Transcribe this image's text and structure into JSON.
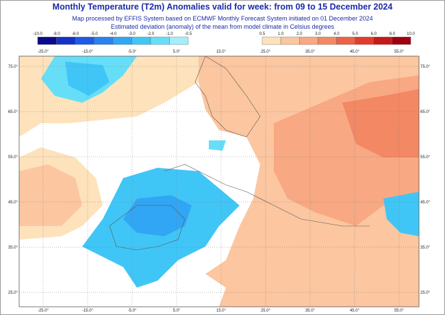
{
  "header": {
    "title": "Monthly Temperature (T2m) Anomalies valid for week: from 09 to 15 December 2024",
    "subtitle_1": "Map processed by EFFIS System based on ECMWF Monthly Forecast System initiated on 01 December 2024",
    "subtitle_2": "Estimated deviation (anomaly) of the mean from model climate in Celsius degrees"
  },
  "legend": {
    "cold": {
      "labels": [
        "-10.0",
        "-8.0",
        "-6.0",
        "-5.0",
        "-4.0",
        "-3.0",
        "-2.0",
        "-1.0",
        "-0.5"
      ],
      "colors": [
        "#0a0a8c",
        "#1432c8",
        "#1e5ae6",
        "#2882f0",
        "#30a6f5",
        "#40c6f6",
        "#66def8",
        "#a4eefa"
      ]
    },
    "warm": {
      "labels": [
        "0.5",
        "1.0",
        "2.0",
        "3.0",
        "4.0",
        "5.0",
        "6.0",
        "8.0",
        "10.0"
      ],
      "colors": [
        "#fde2bc",
        "#fbc6a0",
        "#f8a882",
        "#f38864",
        "#ec6246",
        "#e23c2c",
        "#c61a1a",
        "#9e0010"
      ]
    }
  },
  "map": {
    "lon_labels": [
      "-25.0°",
      "-15.0°",
      "-5.0°",
      "5.0°",
      "15.0°",
      "25.0°",
      "35.0°",
      "45.0°",
      "55.0°"
    ],
    "lat_labels": [
      "75.0°",
      "65.0°",
      "55.0°",
      "45.0°",
      "35.0°",
      "25.0°"
    ]
  }
}
